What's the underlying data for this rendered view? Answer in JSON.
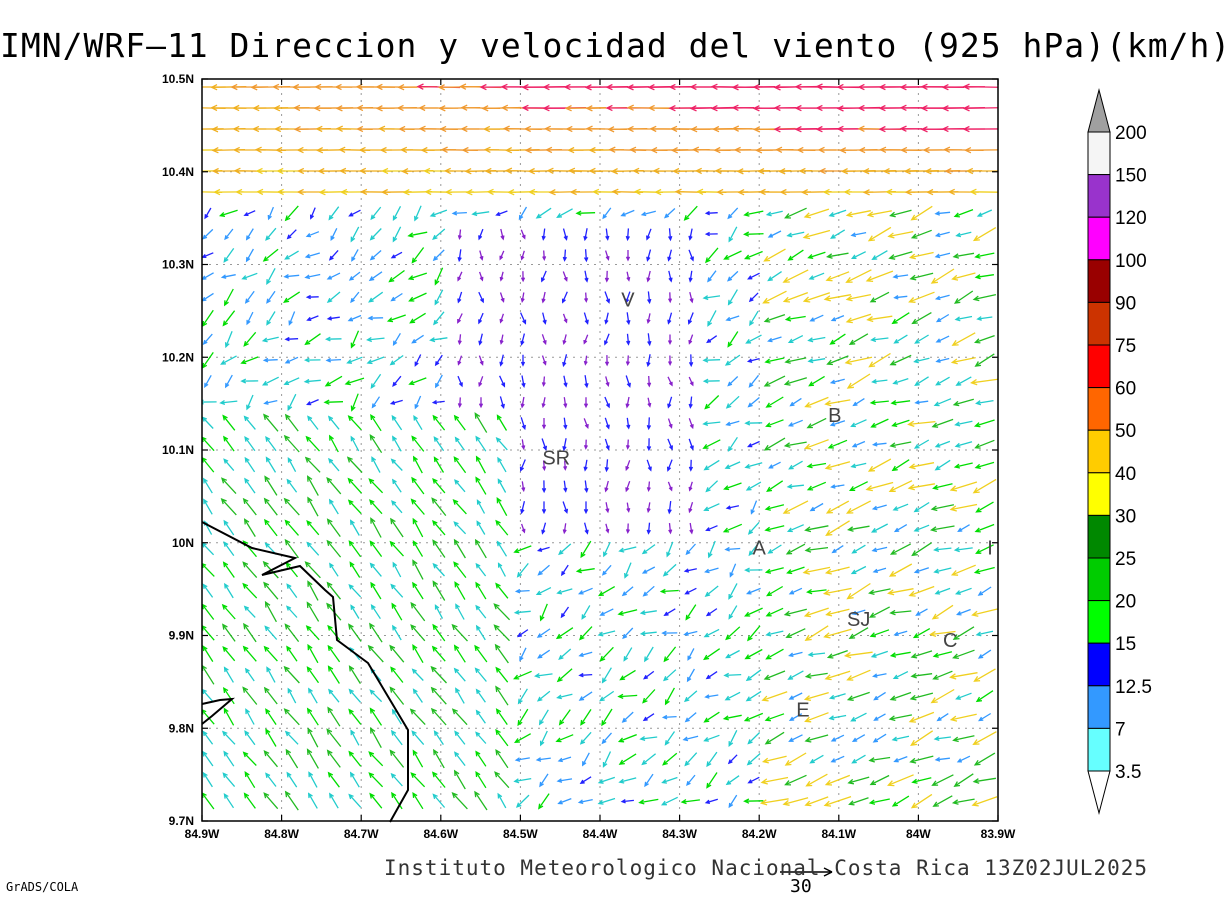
{
  "title": "IMN/WRF–11 Direccion y velocidad del viento (925 hPa)(km/h)",
  "credit": "Instituto Meteorologico Nacional Costa Rica 13Z02JUL2025",
  "software": "GrADS/COLA",
  "reference_vector": {
    "value": "30"
  },
  "axes": {
    "lat_labels": [
      "10.5N",
      "10.4N",
      "10.3N",
      "10.2N",
      "10.1N",
      "10N",
      "9.9N",
      "9.8N",
      "9.7N"
    ],
    "lon_labels": [
      "84.9W",
      "84.8W",
      "84.7W",
      "84.6W",
      "84.5W",
      "84.4W",
      "84.3W",
      "84.2W",
      "84.1W",
      "84W",
      "83.9W"
    ]
  },
  "colorbar": {
    "levels": [
      "200",
      "150",
      "120",
      "100",
      "90",
      "75",
      "60",
      "50",
      "40",
      "30",
      "25",
      "20",
      "15",
      "12.5",
      "7",
      "3.5"
    ],
    "colors": [
      "#a0a0a0",
      "#f5f5f5",
      "#9933cc",
      "#ff00ff",
      "#990000",
      "#cc3300",
      "#ff0000",
      "#ff6600",
      "#ffcc00",
      "#ffff00",
      "#008800",
      "#00cc00",
      "#00ff00",
      "#0000ff",
      "#3399ff",
      "#66ffff"
    ]
  },
  "places": [
    {
      "label": "V",
      "lon": -84.365,
      "lat": 10.262
    },
    {
      "label": "B",
      "lon": -84.105,
      "lat": 10.138
    },
    {
      "label": "SR",
      "lon": -84.455,
      "lat": 10.092
    },
    {
      "label": "A",
      "lon": -84.2,
      "lat": 9.995
    },
    {
      "label": "I",
      "lon": -83.91,
      "lat": 9.995
    },
    {
      "label": "SJ",
      "lon": -84.075,
      "lat": 9.918
    },
    {
      "label": "C",
      "lon": -83.96,
      "lat": 9.895
    },
    {
      "label": "E",
      "lon": -84.145,
      "lat": 9.82
    }
  ],
  "wind_colors": {
    "3.5": "#22cccc",
    "7": "#3399ff",
    "12.5": "#2222ff",
    "15": "#00dd00",
    "20": "#22bb22",
    "30": "#f0d020",
    "40": "#f0b020",
    "50": "#f09a30",
    "60": "#ee2266",
    "low": "#8822cc"
  }
}
